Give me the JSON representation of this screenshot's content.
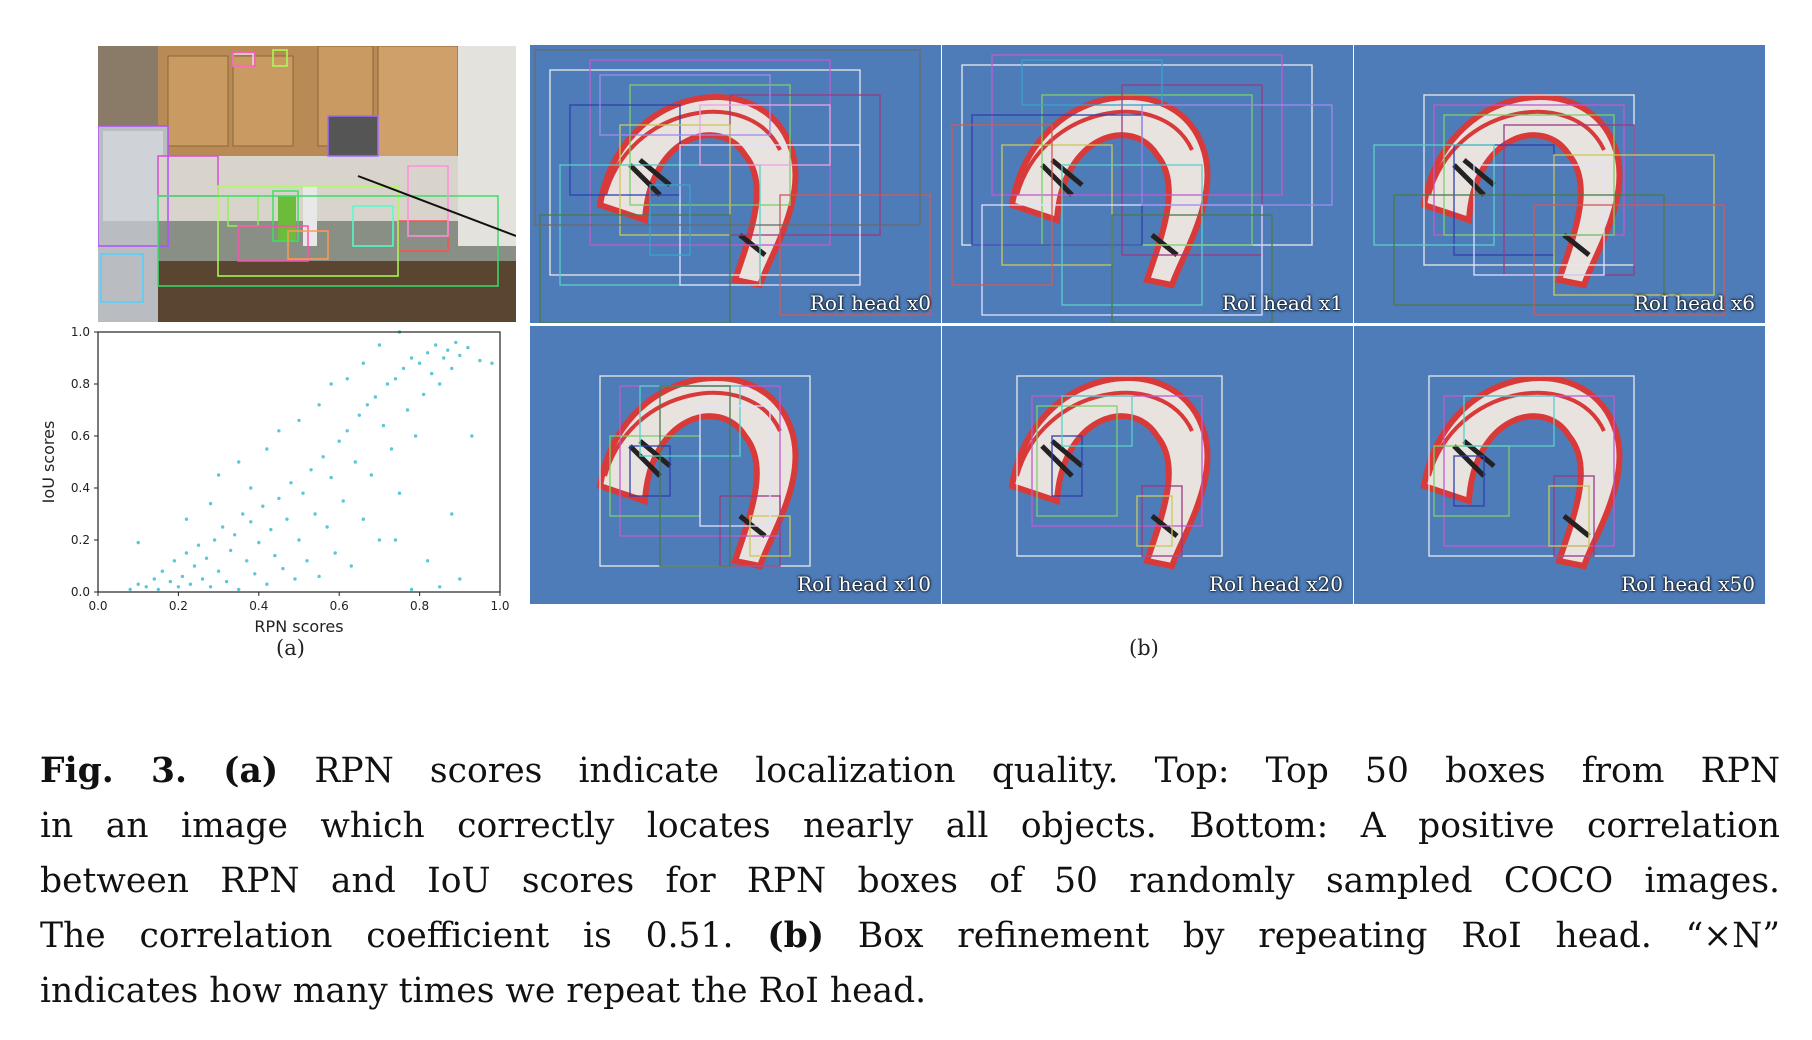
{
  "figure": {
    "panel_a_label": "(a)",
    "panel_b_label": "(b)"
  },
  "panels": [
    {
      "label": "RoI head x0"
    },
    {
      "label": "RoI head x1"
    },
    {
      "label": "RoI head x6"
    },
    {
      "label": "RoI head x10"
    },
    {
      "label": "RoI head x20"
    },
    {
      "label": "RoI head x50"
    }
  ],
  "chart_data": {
    "type": "scatter",
    "xlabel": "RPN scores",
    "ylabel": "IoU scores",
    "xlim": [
      0.0,
      1.0
    ],
    "ylim": [
      0.0,
      1.0
    ],
    "xticks": [
      "0.0",
      "0.2",
      "0.4",
      "0.6",
      "0.8",
      "1.0"
    ],
    "yticks": [
      "0.0",
      "0.2",
      "0.4",
      "0.6",
      "0.8",
      "1.0"
    ],
    "grid": false,
    "marker_color": "#5bc8d8",
    "series": [
      {
        "points": [
          [
            0.08,
            0.01
          ],
          [
            0.1,
            0.03
          ],
          [
            0.12,
            0.02
          ],
          [
            0.14,
            0.05
          ],
          [
            0.15,
            0.01
          ],
          [
            0.16,
            0.08
          ],
          [
            0.18,
            0.04
          ],
          [
            0.19,
            0.12
          ],
          [
            0.2,
            0.02
          ],
          [
            0.21,
            0.06
          ],
          [
            0.22,
            0.15
          ],
          [
            0.23,
            0.03
          ],
          [
            0.24,
            0.1
          ],
          [
            0.25,
            0.18
          ],
          [
            0.26,
            0.05
          ],
          [
            0.27,
            0.13
          ],
          [
            0.28,
            0.02
          ],
          [
            0.29,
            0.2
          ],
          [
            0.3,
            0.08
          ],
          [
            0.31,
            0.25
          ],
          [
            0.32,
            0.04
          ],
          [
            0.33,
            0.16
          ],
          [
            0.34,
            0.22
          ],
          [
            0.35,
            0.01
          ],
          [
            0.36,
            0.3
          ],
          [
            0.37,
            0.12
          ],
          [
            0.38,
            0.27
          ],
          [
            0.39,
            0.07
          ],
          [
            0.4,
            0.19
          ],
          [
            0.41,
            0.33
          ],
          [
            0.42,
            0.03
          ],
          [
            0.43,
            0.24
          ],
          [
            0.44,
            0.14
          ],
          [
            0.45,
            0.36
          ],
          [
            0.46,
            0.09
          ],
          [
            0.47,
            0.28
          ],
          [
            0.48,
            0.42
          ],
          [
            0.49,
            0.05
          ],
          [
            0.5,
            0.2
          ],
          [
            0.51,
            0.38
          ],
          [
            0.52,
            0.12
          ],
          [
            0.53,
            0.47
          ],
          [
            0.54,
            0.3
          ],
          [
            0.55,
            0.06
          ],
          [
            0.56,
            0.52
          ],
          [
            0.57,
            0.25
          ],
          [
            0.58,
            0.44
          ],
          [
            0.59,
            0.15
          ],
          [
            0.6,
            0.58
          ],
          [
            0.61,
            0.35
          ],
          [
            0.62,
            0.62
          ],
          [
            0.63,
            0.1
          ],
          [
            0.64,
            0.5
          ],
          [
            0.65,
            0.68
          ],
          [
            0.66,
            0.28
          ],
          [
            0.67,
            0.72
          ],
          [
            0.68,
            0.45
          ],
          [
            0.69,
            0.75
          ],
          [
            0.7,
            0.2
          ],
          [
            0.71,
            0.64
          ],
          [
            0.72,
            0.8
          ],
          [
            0.73,
            0.55
          ],
          [
            0.74,
            0.82
          ],
          [
            0.75,
            0.38
          ],
          [
            0.76,
            0.86
          ],
          [
            0.77,
            0.7
          ],
          [
            0.78,
            0.9
          ],
          [
            0.79,
            0.6
          ],
          [
            0.8,
            0.88
          ],
          [
            0.81,
            0.76
          ],
          [
            0.82,
            0.92
          ],
          [
            0.83,
            0.84
          ],
          [
            0.84,
            0.95
          ],
          [
            0.85,
            0.8
          ],
          [
            0.86,
            0.9
          ],
          [
            0.87,
            0.93
          ],
          [
            0.88,
            0.86
          ],
          [
            0.89,
            0.96
          ],
          [
            0.9,
            0.91
          ],
          [
            0.92,
            0.94
          ],
          [
            0.95,
            0.89
          ],
          [
            0.98,
            0.88
          ],
          [
            0.1,
            0.19
          ],
          [
            0.3,
            0.45
          ],
          [
            0.35,
            0.5
          ],
          [
            0.42,
            0.55
          ],
          [
            0.5,
            0.66
          ],
          [
            0.55,
            0.72
          ],
          [
            0.62,
            0.82
          ],
          [
            0.66,
            0.88
          ],
          [
            0.7,
            0.95
          ],
          [
            0.75,
            1.0
          ],
          [
            0.45,
            0.62
          ],
          [
            0.58,
            0.8
          ],
          [
            0.38,
            0.4
          ],
          [
            0.28,
            0.34
          ],
          [
            0.22,
            0.28
          ],
          [
            0.85,
            0.02
          ],
          [
            0.9,
            0.05
          ],
          [
            0.78,
            0.01
          ],
          [
            0.82,
            0.12
          ],
          [
            0.88,
            0.3
          ],
          [
            0.93,
            0.6
          ],
          [
            0.74,
            0.2
          ]
        ]
      }
    ]
  },
  "caption": {
    "line1_bold1": "Fig. 3.",
    "line1_bold2": "(a)",
    "line1_text": "RPN scores indicate localization quality. Top: Top 50 boxes from RPN",
    "line2_text": "in an image which correctly locates nearly all objects. Bottom: A positive correlation",
    "line3_text": "between RPN and IoU scores for RPN boxes of 50 randomly sampled COCO images.",
    "line4_text_a": "The correlation coefficient is 0.51.",
    "line4_bold": "(b)",
    "line4_text_b": "Box refinement by repeating RoI head. “×N”",
    "line5_text": "indicates how many times we repeat the RoI head."
  }
}
